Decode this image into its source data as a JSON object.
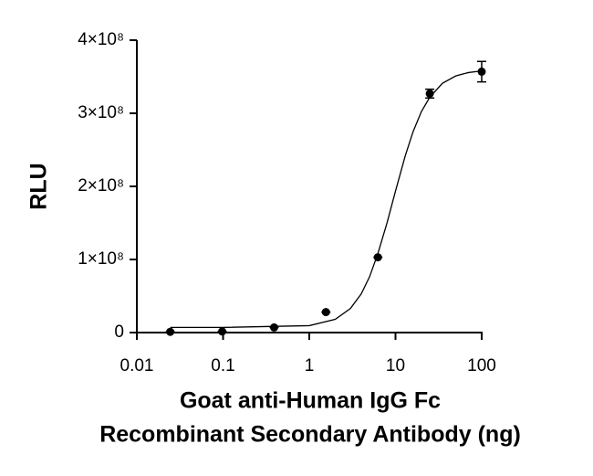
{
  "chart_data": {
    "type": "scatter",
    "xlabel": [
      "Goat anti-Human IgG Fc",
      "Recombinant Secondary Antibody (ng)"
    ],
    "ylabel": "RLU",
    "xscale": "log",
    "color": "#000000",
    "x": [
      0.0244,
      0.0977,
      0.391,
      1.56,
      6.25,
      25,
      100
    ],
    "values": [
      1000000,
      1500000,
      7000000,
      28000000,
      103000000,
      327000000,
      357000000
    ],
    "errors": [
      0,
      0,
      0,
      0,
      0,
      6000000,
      14000000
    ],
    "fit": {
      "x": [
        0.0244,
        0.1,
        1,
        2,
        3,
        4,
        5,
        6.25,
        8,
        10,
        13,
        16,
        20,
        25,
        35,
        50,
        70,
        100
      ],
      "values": [
        7000000,
        7000000,
        9480000,
        18100000,
        32900000,
        52800000,
        76200000,
        108000000,
        150500000,
        193500000,
        242100000,
        274900000,
        302500000,
        322000000,
        341000000,
        351100000,
        355700000,
        358000000
      ]
    },
    "xlim": [
      0.01,
      100
    ],
    "xticks": [
      0.01,
      0.1,
      1,
      10,
      100
    ],
    "ylim": [
      0,
      400000000
    ],
    "yticks": [
      0,
      {
        "value": 100000000,
        "label": "1×10⁸"
      },
      {
        "value": 200000000,
        "label": "2×10⁸"
      },
      {
        "value": 300000000,
        "label": "3×10⁸"
      },
      {
        "value": 400000000,
        "label": "4×10⁸"
      }
    ]
  }
}
